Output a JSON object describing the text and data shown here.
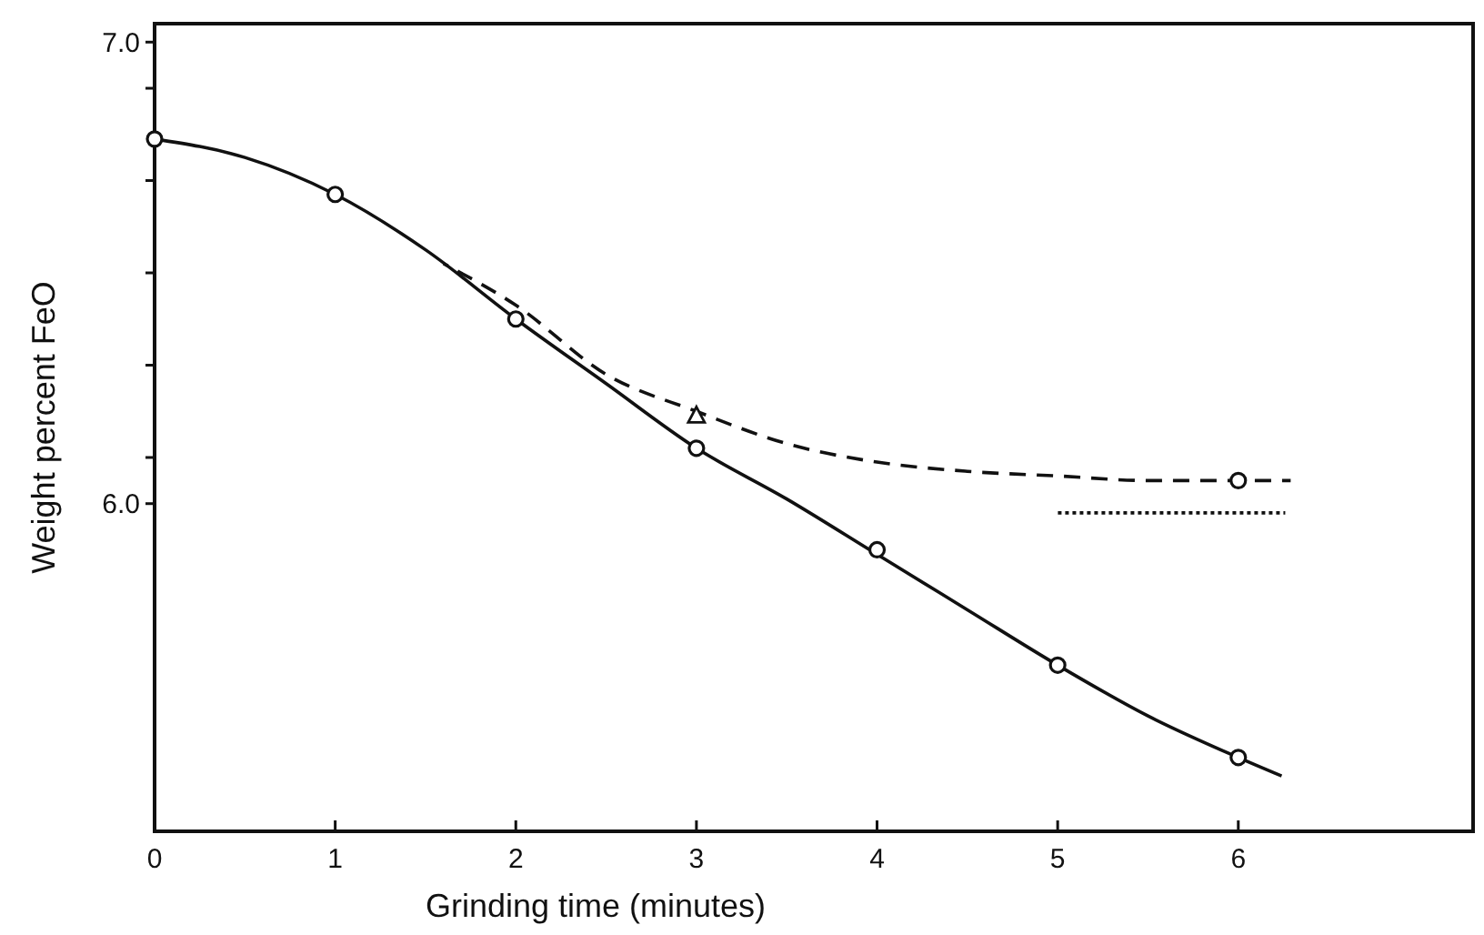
{
  "chart_data": {
    "type": "line",
    "xlabel": "Grinding time  (minutes)",
    "ylabel": "Weight percent FeO",
    "xlim": [
      0,
      7.3
    ],
    "ylim": [
      5.29,
      7.04
    ],
    "xticks": [
      0,
      1,
      2,
      3,
      4,
      5,
      6
    ],
    "yticks": [
      {
        "value": 6.0,
        "label": "6.0"
      },
      {
        "value": 6.1,
        "label": null
      },
      {
        "value": 6.3,
        "label": null
      },
      {
        "value": 6.5,
        "label": null
      },
      {
        "value": 6.7,
        "label": null
      },
      {
        "value": 6.9,
        "label": null
      },
      {
        "value": 7.0,
        "label": "7.0"
      }
    ],
    "grid": false,
    "series": [
      {
        "line_style": "solid",
        "marker": "none",
        "color": "#111111",
        "x": [
          0,
          0.5,
          1,
          1.5,
          2,
          2.5,
          3,
          3.5,
          4,
          4.5,
          5,
          5.5,
          6,
          6.24
        ],
        "values": [
          6.79,
          6.75,
          6.67,
          6.55,
          6.4,
          6.26,
          6.12,
          6.01,
          5.89,
          5.77,
          5.65,
          5.54,
          5.45,
          5.41
        ]
      },
      {
        "type": "scatter",
        "marker": "circle",
        "color": "#111111",
        "x": [
          0,
          1,
          2,
          3,
          4,
          5,
          6
        ],
        "values": [
          6.79,
          6.67,
          6.4,
          6.12,
          5.9,
          5.65,
          5.45
        ]
      },
      {
        "line_style": "dashed",
        "marker": "none",
        "color": "#111111",
        "x": [
          1.6,
          2,
          2.5,
          3,
          3.5,
          4,
          4.5,
          5,
          5.5,
          6,
          6.29
        ],
        "values": [
          6.52,
          6.43,
          6.28,
          6.2,
          6.13,
          6.09,
          6.07,
          6.06,
          6.05,
          6.05,
          6.05
        ]
      },
      {
        "type": "scatter",
        "marker": "triangle",
        "color": "#111111",
        "x": [
          3
        ],
        "values": [
          6.19
        ]
      },
      {
        "type": "scatter",
        "marker": "circle",
        "color": "#111111",
        "x": [
          6
        ],
        "values": [
          6.05
        ]
      },
      {
        "line_style": "dotted",
        "marker": "none",
        "color": "#111111",
        "x": [
          5.0,
          6.26
        ],
        "values": [
          5.98,
          5.98
        ]
      }
    ]
  }
}
